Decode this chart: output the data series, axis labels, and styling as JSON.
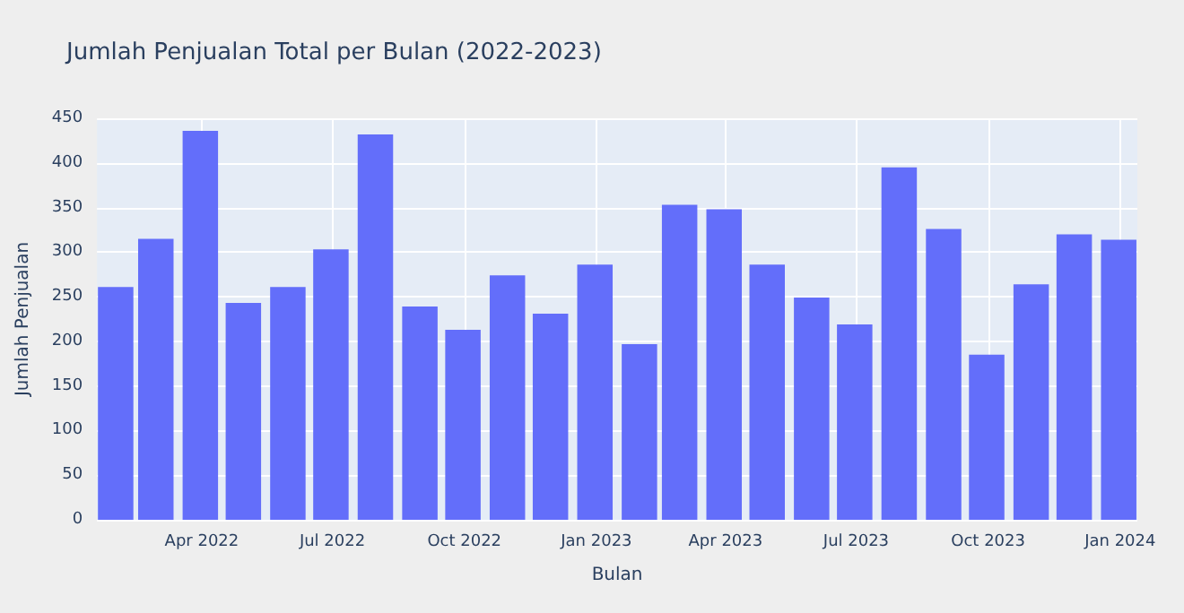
{
  "chart_data": {
    "type": "bar",
    "title": "Jumlah Penjualan Total per Bulan (2022-2023)",
    "xlabel": "Bulan",
    "ylabel": "Jumlah Penjualan",
    "color": "#636efa",
    "x": [
      "2022-01-31",
      "2022-02-28",
      "2022-03-31",
      "2022-04-30",
      "2022-05-31",
      "2022-06-30",
      "2022-07-31",
      "2022-08-31",
      "2022-09-30",
      "2022-10-31",
      "2022-11-30",
      "2022-12-31",
      "2023-01-31",
      "2023-02-28",
      "2023-03-31",
      "2023-04-30",
      "2023-05-31",
      "2023-06-30",
      "2023-07-31",
      "2023-08-31",
      "2023-09-30",
      "2023-10-31",
      "2023-11-30",
      "2023-12-31"
    ],
    "values": [
      261,
      315,
      436,
      243,
      261,
      303,
      432,
      239,
      213,
      274,
      231,
      286,
      197,
      353,
      348,
      286,
      249,
      219,
      395,
      326,
      185,
      264,
      320,
      314
    ],
    "xlim": [
      "2022-01-18",
      "2024-01-13"
    ],
    "xticks": [
      {
        "value": "2022-04-01",
        "label": "Apr 2022"
      },
      {
        "value": "2022-07-01",
        "label": "Jul 2022"
      },
      {
        "value": "2022-10-01",
        "label": "Oct 2022"
      },
      {
        "value": "2023-01-01",
        "label": "Jan 2023"
      },
      {
        "value": "2023-04-01",
        "label": "Apr 2023"
      },
      {
        "value": "2023-07-01",
        "label": "Jul 2023"
      },
      {
        "value": "2023-10-01",
        "label": "Oct 2023"
      },
      {
        "value": "2024-01-01",
        "label": "Jan 2024"
      }
    ],
    "ylim": [
      0,
      450
    ],
    "yticks": [
      0,
      50,
      100,
      150,
      200,
      250,
      300,
      350,
      400,
      450
    ],
    "grid": true
  }
}
